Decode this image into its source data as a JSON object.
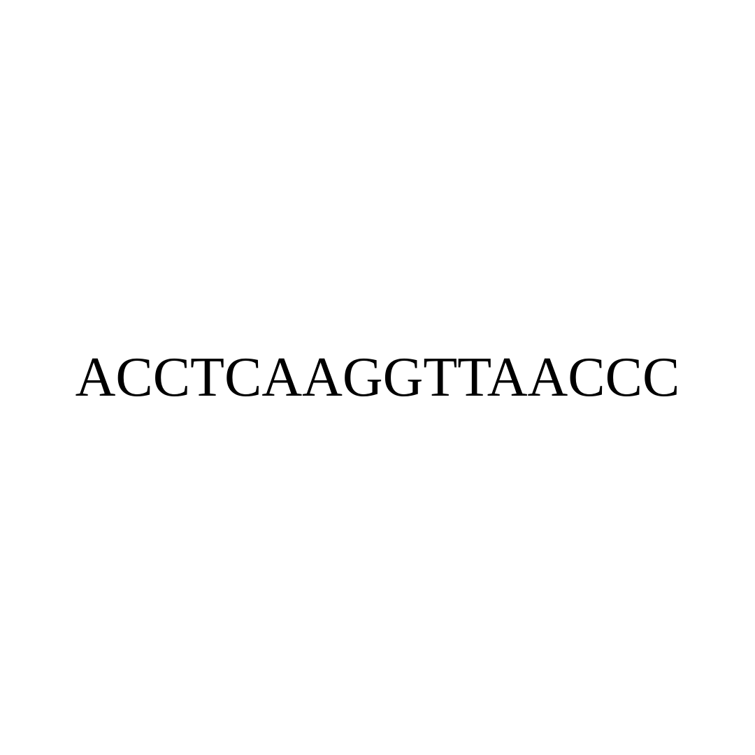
{
  "sequence": {
    "text": "ACCTCAAGGTTAACCC",
    "font_family": "Times New Roman",
    "font_size": 80,
    "font_weight": 400,
    "color": "#000000",
    "background_color": "#ffffff"
  }
}
